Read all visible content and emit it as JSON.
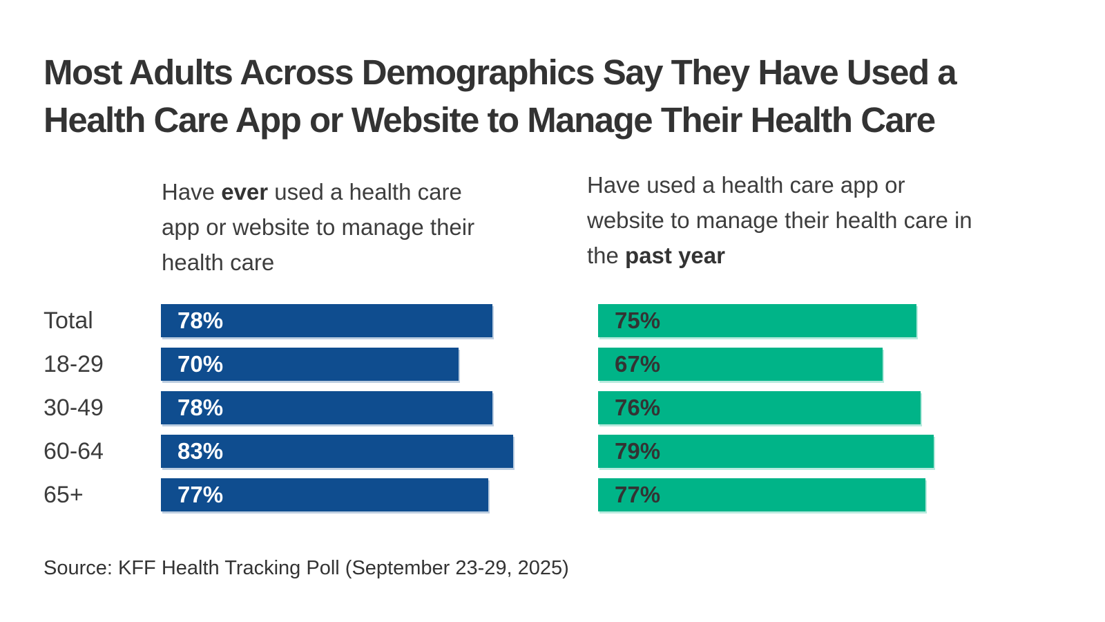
{
  "title_lines": [
    "Most Adults Across Demographics Say They Have Used a",
    "Health Care App or Website to Manage Their Health Care"
  ],
  "col_headers": {
    "ever": {
      "pre": "Have ",
      "bold": "ever",
      "post": " used a health care app or website to manage their health care"
    },
    "past_year": {
      "pre": "Have used a health care app or website to manage their health care in the ",
      "bold": "past year",
      "post": ""
    }
  },
  "source": "Source: KFF Health Tracking Poll (September 23-29, 2025)",
  "colors": {
    "ever_bar": "#0F4D8F",
    "past_year_bar": "#00B488",
    "ever_value_text": "#FFFFFF",
    "past_year_value_text": "#333333",
    "title_text": "#333333"
  },
  "chart_data": {
    "type": "bar",
    "orientation": "horizontal",
    "title": "Most Adults Across Demographics Say They Have Used a Health Care App or Website to Manage Their Health Care",
    "categories": [
      "Total",
      "18-29",
      "30-49",
      "60-64",
      "65+"
    ],
    "series": [
      {
        "name": "Have ever used a health care app or website to manage their health care",
        "color": "#0F4D8F",
        "label_color": "#FFFFFF",
        "values": [
          78,
          70,
          78,
          83,
          77
        ]
      },
      {
        "name": "Have used a health care app or website to manage their health care in the past year",
        "color": "#00B488",
        "label_color": "#333333",
        "values": [
          75,
          67,
          76,
          79,
          77
        ]
      }
    ],
    "value_suffix": "%",
    "xlim": [
      0,
      100
    ],
    "grid": false,
    "legend_position": "column-headers",
    "source": "Source: KFF Health Tracking Poll (September 23-29, 2025)"
  }
}
